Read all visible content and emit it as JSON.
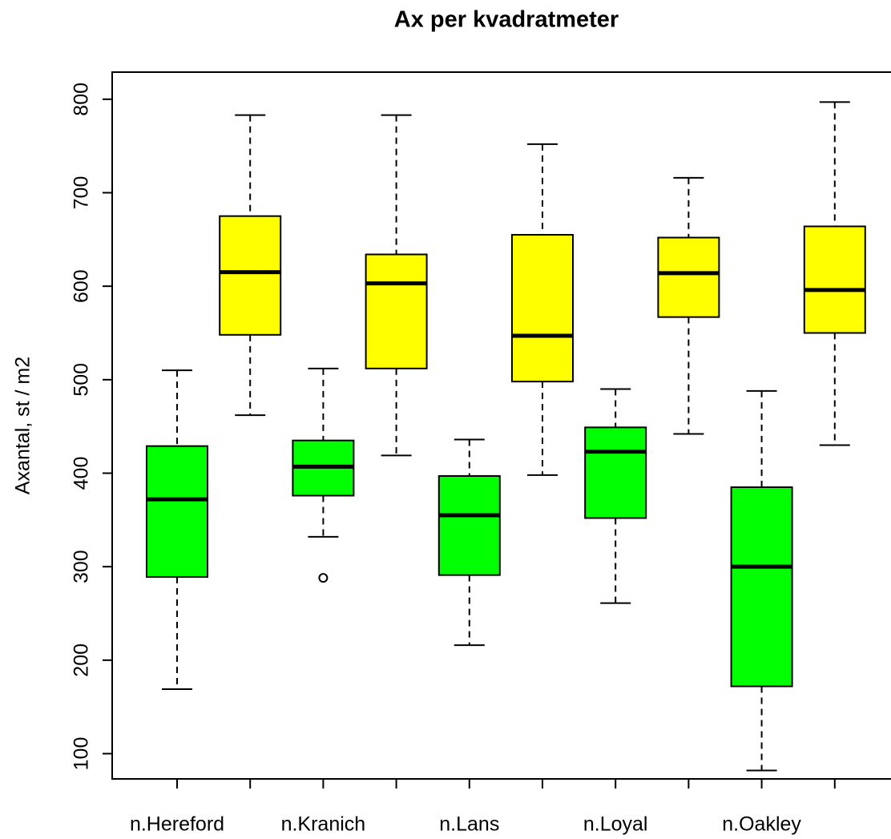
{
  "chart_data": {
    "type": "box",
    "title": "Ax per kvadratmeter",
    "y_label": "Axantal, st / m2",
    "categories": [
      "n.Hereford",
      null,
      "n.Kranich",
      null,
      "n.Lans",
      null,
      "n.Loyal",
      null,
      "n.Oakley",
      null
    ],
    "fill_colors": [
      "#00ff00",
      "#ffff00"
    ],
    "boxes": [
      {
        "whislo": 169,
        "q1": 289,
        "med": 372,
        "q3": 429,
        "whishi": 510,
        "fliers": []
      },
      {
        "whislo": 462,
        "q1": 548,
        "med": 615,
        "q3": 675,
        "whishi": 783,
        "fliers": []
      },
      {
        "whislo": 332,
        "q1": 376,
        "med": 407,
        "q3": 435,
        "whishi": 512,
        "fliers": [
          288
        ]
      },
      {
        "whislo": 419,
        "q1": 512,
        "med": 603,
        "q3": 634,
        "whishi": 783,
        "fliers": []
      },
      {
        "whislo": 216,
        "q1": 291,
        "med": 355,
        "q3": 397,
        "whishi": 436,
        "fliers": []
      },
      {
        "whislo": 398,
        "q1": 498,
        "med": 547,
        "q3": 655,
        "whishi": 752,
        "fliers": []
      },
      {
        "whislo": 261,
        "q1": 352,
        "med": 423,
        "q3": 449,
        "whishi": 490,
        "fliers": []
      },
      {
        "whislo": 442,
        "q1": 567,
        "med": 614,
        "q3": 652,
        "whishi": 716,
        "fliers": []
      },
      {
        "whislo": 82,
        "q1": 172,
        "med": 300,
        "q3": 385,
        "whishi": 488,
        "fliers": []
      },
      {
        "whislo": 430,
        "q1": 550,
        "med": 596,
        "q3": 664,
        "whishi": 797,
        "fliers": []
      }
    ],
    "ylim": [
      73,
      829
    ],
    "yticks": [
      100,
      200,
      300,
      400,
      500,
      600,
      700,
      800
    ]
  }
}
